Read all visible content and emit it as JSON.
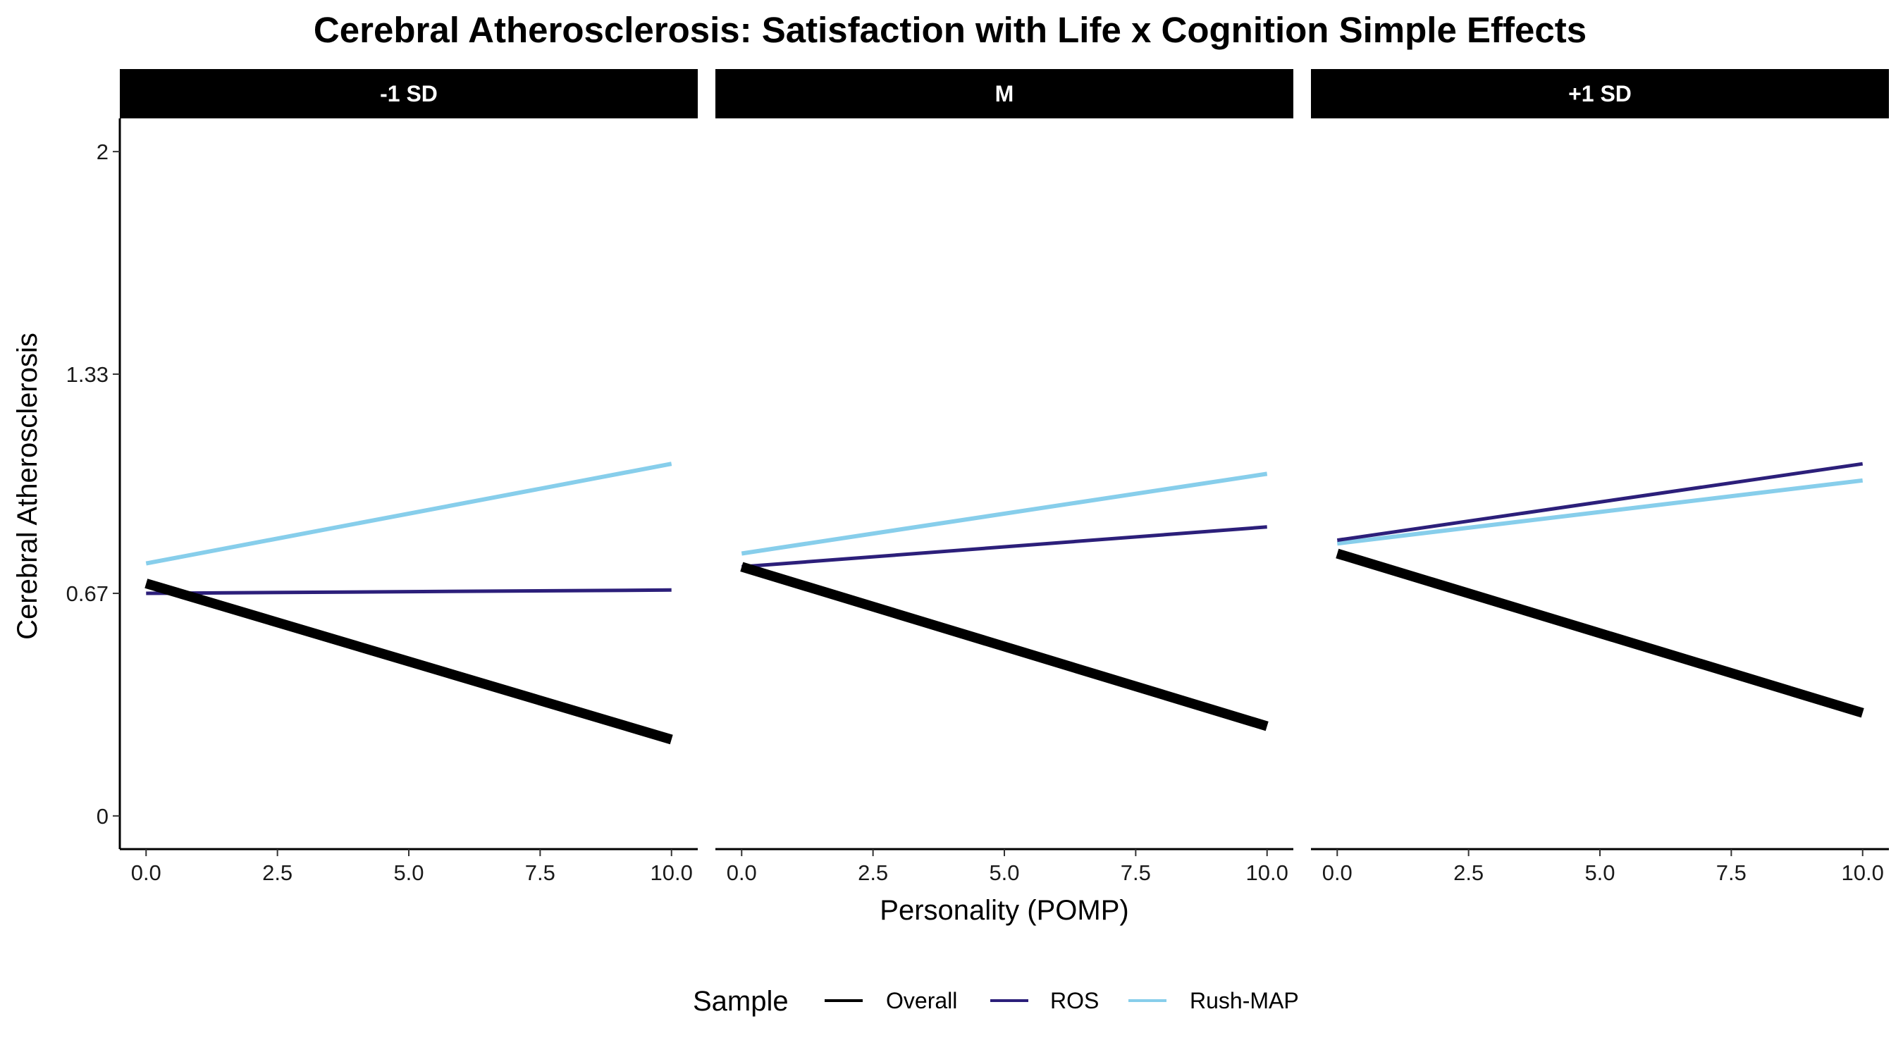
{
  "chart_data": {
    "type": "line",
    "title": "Cerebral Atherosclerosis: Satisfaction with Life x Cognition Simple Effects",
    "xlabel": "Personality (POMP)",
    "ylabel": "Cerebral Atherosclerosis",
    "xlim": [
      -0.5,
      10.5
    ],
    "ylim": [
      -0.1,
      2.1
    ],
    "x_ticks": [
      0,
      2.5,
      5,
      7.5,
      10
    ],
    "x_tick_labels": [
      "0.0",
      "2.5",
      "5.0",
      "7.5",
      "10.0"
    ],
    "y_ticks": [
      0,
      0.67,
      1.33,
      2
    ],
    "y_tick_labels": [
      "0",
      "0.67",
      "1.33",
      "2"
    ],
    "grid": false,
    "legend": {
      "title": "Sample",
      "position": "bottom",
      "entries": [
        {
          "label": "Overall",
          "color": "#000000"
        },
        {
          "label": "ROS",
          "color": "#2c1f7a"
        },
        {
          "label": "Rush-MAP",
          "color": "#87ceeb"
        }
      ]
    },
    "panels": [
      {
        "label": "-1 SD",
        "series": [
          {
            "name": "Overall",
            "color": "#000000",
            "x": [
              0,
              10
            ],
            "y": [
              0.7,
              0.23
            ]
          },
          {
            "name": "ROS",
            "color": "#2c1f7a",
            "x": [
              0,
              10
            ],
            "y": [
              0.67,
              0.68
            ]
          },
          {
            "name": "Rush-MAP",
            "color": "#87ceeb",
            "x": [
              0,
              10
            ],
            "y": [
              0.76,
              1.06
            ]
          }
        ]
      },
      {
        "label": "M",
        "series": [
          {
            "name": "Overall",
            "color": "#000000",
            "x": [
              0,
              10
            ],
            "y": [
              0.75,
              0.27
            ]
          },
          {
            "name": "ROS",
            "color": "#2c1f7a",
            "x": [
              0,
              10
            ],
            "y": [
              0.75,
              0.87
            ]
          },
          {
            "name": "Rush-MAP",
            "color": "#87ceeb",
            "x": [
              0,
              10
            ],
            "y": [
              0.79,
              1.03
            ]
          }
        ]
      },
      {
        "label": "+1 SD",
        "series": [
          {
            "name": "Overall",
            "color": "#000000",
            "x": [
              0,
              10
            ],
            "y": [
              0.79,
              0.31
            ]
          },
          {
            "name": "ROS",
            "color": "#2c1f7a",
            "x": [
              0,
              10
            ],
            "y": [
              0.83,
              1.06
            ]
          },
          {
            "name": "Rush-MAP",
            "color": "#87ceeb",
            "x": [
              0,
              10
            ],
            "y": [
              0.82,
              1.01
            ]
          }
        ]
      }
    ]
  }
}
